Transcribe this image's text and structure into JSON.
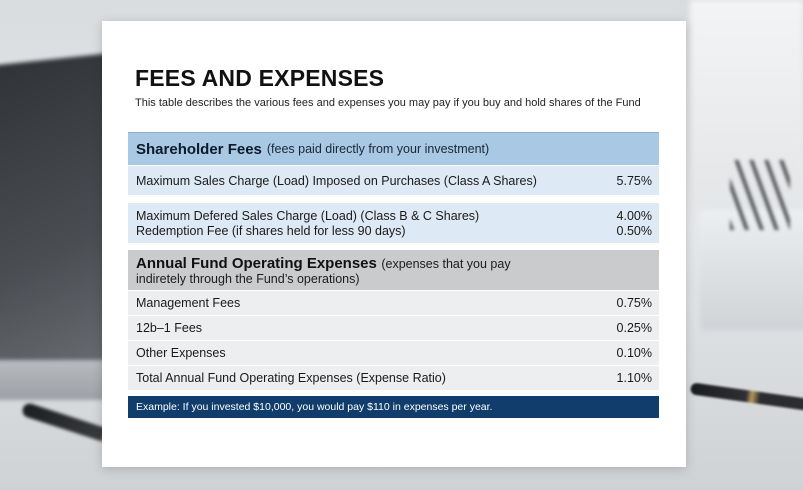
{
  "document": {
    "title": "FEES AND EXPENSES",
    "subtitle": "This table describes the various fees and expenses you may pay if you buy and hold shares of the Fund"
  },
  "shareholder_fees": {
    "heading": "Shareholder Fees",
    "heading_note": "(fees paid directly from your investment)",
    "rows": [
      {
        "label": "Maximum Sales Charge (Load) Imposed on Purchases (Class A Shares)",
        "value": "5.75%"
      },
      {
        "label": "Maximum Defered Sales Charge (Load) (Class B & C Shares)",
        "value": "4.00%"
      },
      {
        "label": "Redemption Fee (if shares held for less 90 days)",
        "value": "0.50%"
      }
    ]
  },
  "operating_expenses": {
    "heading": "Annual Fund Operating Expenses",
    "heading_note_line1": "(expenses that you pay",
    "heading_note_line2": "indiretely through the Fund’s operations)",
    "rows": [
      {
        "label": "Management Fees",
        "value": "0.75%"
      },
      {
        "label": "12b–1 Fees",
        "value": "0.25%"
      },
      {
        "label": "Other Expenses",
        "value": "0.10%"
      },
      {
        "label": "Total Annual Fund Operating Expenses (Expense Ratio)",
        "value": "1.10%"
      }
    ]
  },
  "example_note": "Example: If you invested $10,000, you would pay $110 in expenses per year.",
  "colors": {
    "header_blue": "#a8c8e3",
    "row_blue": "#dde9f4",
    "header_gray": "#c9cbcd",
    "row_gray": "#eceeef",
    "example_navy": "#103d6b"
  }
}
